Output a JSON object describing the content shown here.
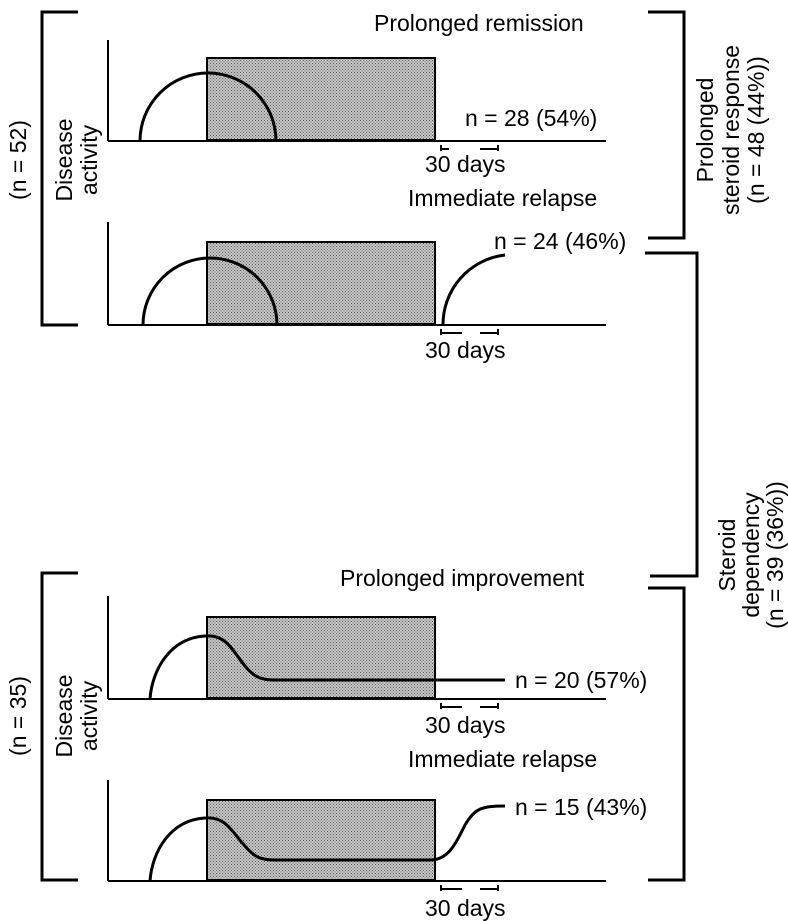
{
  "group1": {
    "n_label": "(n = 52)",
    "axis_label_line1": "Disease",
    "axis_label_line2": "activity",
    "panels": [
      {
        "title": "Prolonged remission",
        "count": "n = 28 (54%)",
        "days": "30 days"
      },
      {
        "title": "Immediate relapse",
        "count": "n = 24 (46%)",
        "days": "30 days"
      }
    ]
  },
  "group2": {
    "n_label": "(n = 35)",
    "axis_label_line1": "Disease",
    "axis_label_line2": "activity",
    "panels": [
      {
        "title": "Prolonged improvement",
        "count": "n = 20 (57%)",
        "days": "30 days"
      },
      {
        "title": "Immediate relapse",
        "count": "n = 15 (43%)",
        "days": "30 days"
      }
    ]
  },
  "right_brackets": {
    "prolonged_line1": "Prolonged",
    "prolonged_line2": "steroid response",
    "prolonged_line3": "(n = 48 (44%))",
    "dependency_line1": "Steroid",
    "dependency_line2": "dependency",
    "dependency_line3": "(n = 39 (36%))"
  },
  "colors": {
    "line": "#000000",
    "shade": "#9a9a9a"
  }
}
